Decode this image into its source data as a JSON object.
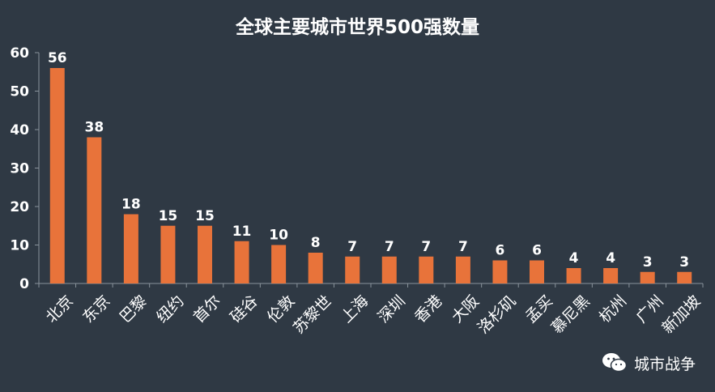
{
  "chart_data": {
    "type": "bar",
    "title": "全球主要城市世界500强数量",
    "categories": [
      "北京",
      "东京",
      "巴黎",
      "纽约",
      "首尔",
      "硅谷",
      "伦敦",
      "苏黎世",
      "上海",
      "深圳",
      "香港",
      "大阪",
      "洛杉矶",
      "孟买",
      "慕尼黑",
      "杭州",
      "广州",
      "新加坡"
    ],
    "values": [
      56,
      38,
      18,
      15,
      15,
      11,
      10,
      8,
      7,
      7,
      7,
      7,
      6,
      6,
      4,
      4,
      3,
      3
    ],
    "ylim": [
      0,
      60
    ],
    "yticks": [
      0,
      10,
      20,
      30,
      40,
      50,
      60
    ],
    "xlabel": "",
    "ylabel": "",
    "grid": false,
    "data_labels": true,
    "bar_color": "#e8733a"
  },
  "watermark": {
    "text": "城市战争",
    "icon": "wechat-icon"
  },
  "colors": {
    "background": "#2f3944",
    "bar": "#e8733a",
    "text": "#ffffff"
  }
}
